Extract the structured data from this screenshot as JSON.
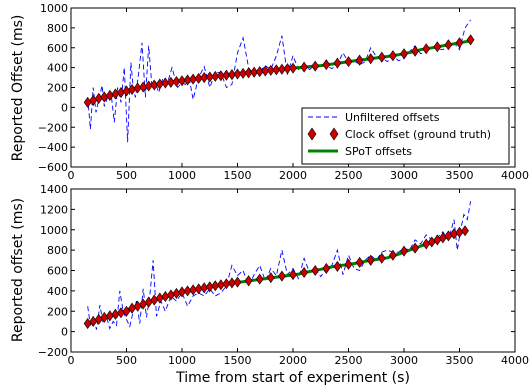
{
  "chart_data": [
    {
      "type": "line",
      "xlabel": "",
      "ylabel": "Reported Offset (ms)",
      "xlim": [
        0,
        4000
      ],
      "ylim": [
        -600,
        1000
      ],
      "xticks": [
        "0",
        "500",
        "1000",
        "1500",
        "2000",
        "2500",
        "3000",
        "3500",
        "4000"
      ],
      "yticks": [
        "−600",
        "−400",
        "−200",
        "0",
        "200",
        "400",
        "600",
        "800",
        "1000"
      ],
      "legend": {
        "position": "lower-right",
        "entries": [
          "Unfiltered offsets",
          "Clock offset (ground truth)",
          "SPoT offsets"
        ]
      },
      "series": [
        {
          "name": "Unfiltered offsets",
          "color": "#0000ff",
          "style": "dashed",
          "x": [
            150,
            175,
            200,
            225,
            250,
            280,
            300,
            330,
            360,
            390,
            420,
            450,
            480,
            510,
            540,
            560,
            580,
            610,
            640,
            670,
            700,
            730,
            760,
            790,
            830,
            870,
            910,
            960,
            1000,
            1030,
            1060,
            1100,
            1150,
            1200,
            1250,
            1300,
            1350,
            1400,
            1450,
            1500,
            1550,
            1600,
            1650,
            1700,
            1750,
            1800,
            1850,
            1900,
            1950,
            2000,
            2050,
            2100,
            2150,
            2200,
            2250,
            2300,
            2350,
            2400,
            2450,
            2500,
            2550,
            2600,
            2650,
            2700,
            2750,
            2800,
            2850,
            2900,
            2950,
            3000,
            3050,
            3100,
            3150,
            3200,
            3250,
            3300,
            3350,
            3400,
            3450,
            3500,
            3550,
            3600
          ],
          "y": [
            100,
            -220,
            200,
            -50,
            80,
            220,
            10,
            100,
            150,
            -150,
            200,
            50,
            400,
            -350,
            450,
            200,
            100,
            350,
            650,
            100,
            620,
            200,
            250,
            150,
            300,
            250,
            400,
            200,
            250,
            230,
            320,
            80,
            300,
            410,
            200,
            350,
            350,
            200,
            230,
            550,
            700,
            400,
            330,
            360,
            420,
            380,
            520,
            720,
            330,
            520,
            380,
            420,
            380,
            430,
            410,
            420,
            390,
            430,
            550,
            450,
            470,
            430,
            460,
            600,
            510,
            500,
            460,
            520,
            470,
            490,
            560,
            620,
            540,
            560,
            600,
            590,
            580,
            620,
            650,
            580,
            800,
            880
          ]
        },
        {
          "name": "Clock offset (ground truth)",
          "color": "#cc0000",
          "style": "diamond-markers",
          "x": [
            150,
            200,
            250,
            300,
            350,
            400,
            450,
            500,
            550,
            600,
            650,
            700,
            750,
            800,
            850,
            900,
            950,
            1000,
            1050,
            1100,
            1150,
            1200,
            1250,
            1300,
            1350,
            1400,
            1450,
            1500,
            1550,
            1600,
            1650,
            1700,
            1750,
            1800,
            1850,
            1900,
            1950,
            2000,
            2100,
            2200,
            2300,
            2400,
            2500,
            2600,
            2700,
            2800,
            2900,
            3000,
            3100,
            3200,
            3300,
            3400,
            3500,
            3600
          ],
          "y": [
            50,
            70,
            90,
            105,
            120,
            135,
            150,
            165,
            180,
            195,
            205,
            215,
            225,
            235,
            245,
            252,
            260,
            268,
            276,
            284,
            292,
            300,
            306,
            312,
            318,
            324,
            330,
            336,
            342,
            348,
            354,
            360,
            366,
            372,
            378,
            384,
            390,
            395,
            405,
            415,
            430,
            445,
            460,
            475,
            490,
            505,
            520,
            540,
            565,
            590,
            610,
            630,
            650,
            680
          ]
        },
        {
          "name": "SPoT offsets",
          "color": "#008000",
          "style": "solid-thick",
          "x": [
            150,
            250,
            350,
            450,
            550,
            650,
            750,
            850,
            950,
            1050,
            1150,
            1250,
            1350,
            1450,
            1550,
            1650,
            1750,
            1850,
            1950,
            2050,
            2150,
            2250,
            2350,
            2450,
            2550,
            2650,
            2750,
            2850,
            2950,
            3050,
            3150,
            3250,
            3350,
            3450,
            3550,
            3600
          ],
          "y": [
            50,
            85,
            120,
            150,
            180,
            205,
            225,
            245,
            260,
            276,
            292,
            306,
            318,
            330,
            342,
            354,
            366,
            378,
            390,
            400,
            410,
            420,
            435,
            452,
            468,
            482,
            498,
            512,
            530,
            552,
            580,
            600,
            620,
            640,
            660,
            670
          ]
        }
      ]
    },
    {
      "type": "line",
      "xlabel": "Time from start of experiment (s)",
      "ylabel": "Reported offset (ms)",
      "xlim": [
        0,
        4000
      ],
      "ylim": [
        -200,
        1400
      ],
      "xticks": [
        "0",
        "500",
        "1000",
        "1500",
        "2000",
        "2500",
        "3000",
        "3500",
        "4000"
      ],
      "yticks": [
        "−200",
        "0",
        "200",
        "400",
        "600",
        "800",
        "1000",
        "1200",
        "1400"
      ],
      "series": [
        {
          "name": "Unfiltered offsets",
          "color": "#0000ff",
          "style": "dashed",
          "x": [
            150,
            175,
            200,
            230,
            260,
            290,
            320,
            350,
            380,
            410,
            440,
            470,
            500,
            530,
            560,
            590,
            620,
            650,
            680,
            710,
            740,
            770,
            810,
            850,
            900,
            950,
            1000,
            1050,
            1100,
            1150,
            1200,
            1250,
            1300,
            1350,
            1400,
            1450,
            1500,
            1550,
            1600,
            1650,
            1700,
            1750,
            1800,
            1850,
            1900,
            1950,
            2000,
            2050,
            2100,
            2150,
            2200,
            2250,
            2300,
            2350,
            2400,
            2450,
            2500,
            2550,
            2600,
            2650,
            2700,
            2750,
            2800,
            2850,
            2900,
            2950,
            3000,
            3050,
            3100,
            3150,
            3200,
            3250,
            3300,
            3350,
            3400,
            3450,
            3480,
            3510,
            3540,
            3570,
            3600
          ],
          "y": [
            250,
            60,
            150,
            20,
            260,
            80,
            150,
            30,
            100,
            60,
            400,
            200,
            120,
            50,
            200,
            300,
            80,
            420,
            140,
            350,
            700,
            150,
            300,
            200,
            350,
            300,
            380,
            250,
            350,
            380,
            350,
            420,
            350,
            380,
            450,
            650,
            550,
            600,
            450,
            560,
            650,
            500,
            620,
            550,
            800,
            560,
            620,
            520,
            720,
            580,
            620,
            540,
            620,
            650,
            800,
            560,
            750,
            620,
            600,
            700,
            750,
            700,
            780,
            800,
            780,
            780,
            820,
            800,
            900,
            860,
            950,
            900,
            920,
            980,
            900,
            1100,
            800,
            1000,
            1150,
            1100,
            1280
          ]
        },
        {
          "name": "Clock offset (ground truth)",
          "color": "#cc0000",
          "style": "diamond-markers",
          "x": [
            150,
            200,
            250,
            300,
            350,
            400,
            450,
            500,
            550,
            600,
            650,
            700,
            750,
            800,
            850,
            900,
            950,
            1000,
            1050,
            1100,
            1150,
            1200,
            1250,
            1300,
            1350,
            1400,
            1450,
            1500,
            1600,
            1700,
            1800,
            1900,
            2000,
            2100,
            2200,
            2300,
            2400,
            2500,
            2600,
            2700,
            2800,
            2900,
            3000,
            3100,
            3200,
            3250,
            3300,
            3350,
            3400,
            3450,
            3500,
            3550
          ],
          "y": [
            80,
            100,
            120,
            140,
            155,
            170,
            185,
            200,
            230,
            250,
            270,
            290,
            310,
            330,
            345,
            360,
            375,
            390,
            400,
            410,
            420,
            430,
            440,
            450,
            460,
            470,
            478,
            486,
            500,
            515,
            530,
            545,
            560,
            580,
            600,
            620,
            640,
            660,
            680,
            700,
            720,
            750,
            790,
            820,
            860,
            880,
            900,
            920,
            940,
            960,
            975,
            990
          ]
        },
        {
          "name": "SPoT offsets",
          "color": "#008000",
          "style": "solid-thick",
          "x": [
            150,
            250,
            350,
            450,
            550,
            650,
            750,
            850,
            950,
            1050,
            1150,
            1250,
            1350,
            1450,
            1550,
            1650,
            1750,
            1850,
            1950,
            2050,
            2150,
            2250,
            2350,
            2450,
            2550,
            2650,
            2750,
            2850,
            2950,
            3050,
            3150,
            3250,
            3350,
            3450,
            3550
          ],
          "y": [
            70,
            115,
            150,
            180,
            225,
            265,
            305,
            340,
            370,
            395,
            415,
            435,
            455,
            472,
            490,
            505,
            520,
            535,
            550,
            565,
            590,
            612,
            635,
            652,
            668,
            690,
            708,
            725,
            760,
            800,
            840,
            875,
            915,
            950,
            985
          ]
        }
      ]
    }
  ]
}
